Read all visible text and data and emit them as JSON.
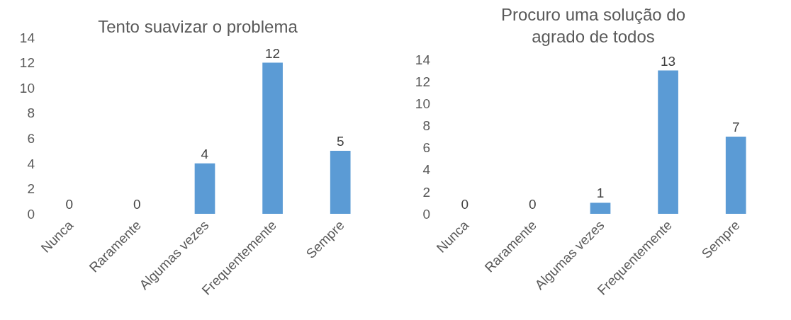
{
  "chart_data": [
    {
      "type": "bar",
      "title": "Tento suavizar o problema",
      "categories": [
        "Nunca",
        "Raramente",
        "Algumas vezes",
        "Frequentemente",
        "Sempre"
      ],
      "values": [
        0,
        0,
        4,
        12,
        5
      ],
      "color": "#5b9bd5",
      "ylim": [
        0,
        14
      ],
      "yticks": [
        0,
        2,
        4,
        6,
        8,
        10,
        12,
        14
      ],
      "grid": false,
      "data_labels": true
    },
    {
      "type": "bar",
      "title": "Procuro uma solução do\nagrado de todos",
      "categories": [
        "Nunca",
        "Raramente",
        "Algumas vezes",
        "Frequentemente",
        "Sempre"
      ],
      "values": [
        0,
        0,
        1,
        13,
        7
      ],
      "color": "#5b9bd5",
      "ylim": [
        0,
        14
      ],
      "yticks": [
        0,
        2,
        4,
        6,
        8,
        10,
        12,
        14
      ],
      "grid": false,
      "data_labels": true
    }
  ]
}
